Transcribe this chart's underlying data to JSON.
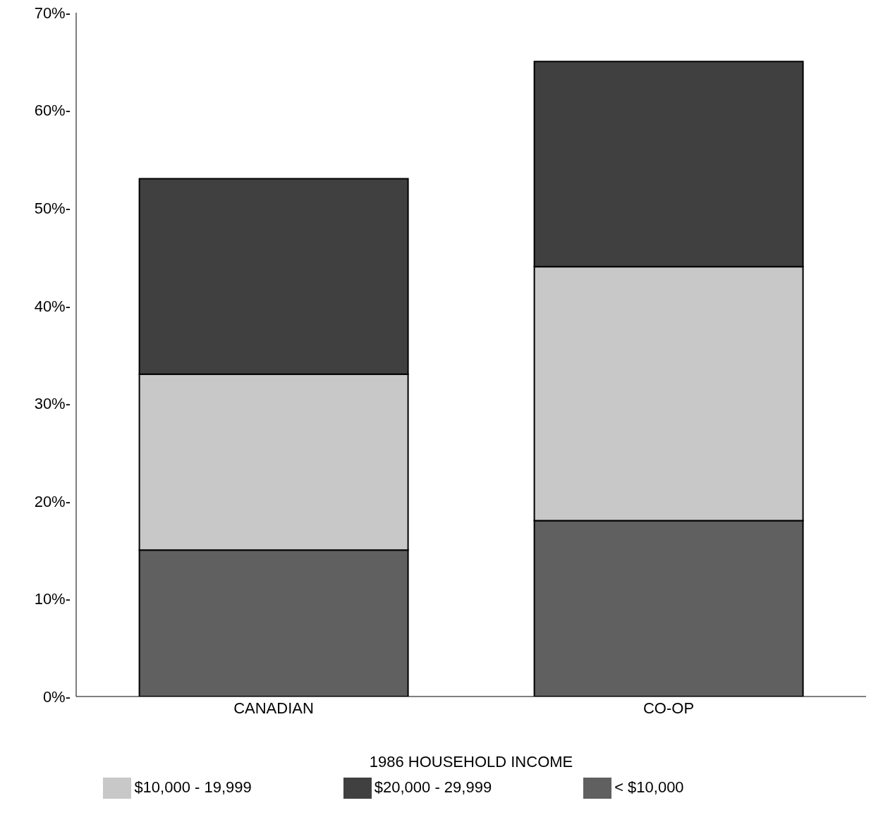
{
  "chart_data": {
    "type": "bar",
    "stacked": true,
    "xlabel": "1986 HOUSEHOLD INCOME",
    "categories": [
      "CANADIAN",
      "CO-OP"
    ],
    "series": [
      {
        "name": "< $10,000",
        "color": "#606060",
        "values": [
          15,
          18
        ]
      },
      {
        "name": "$10,000 - 19,999",
        "color": "#c8c8c8",
        "values": [
          18,
          26
        ]
      },
      {
        "name": "$20,000 - 29,999",
        "color": "#404040",
        "values": [
          20,
          21
        ]
      }
    ],
    "ylim": [
      0,
      70
    ],
    "yticks": [
      {
        "value": 0,
        "label": "0%-"
      },
      {
        "value": 10,
        "label": "10%-"
      },
      {
        "value": 20,
        "label": "20%-"
      },
      {
        "value": 30,
        "label": "30%-"
      },
      {
        "value": 40,
        "label": "40%-"
      },
      {
        "value": 50,
        "label": "50%-"
      },
      {
        "value": 60,
        "label": "60%-"
      },
      {
        "value": 70,
        "label": "70%-"
      }
    ],
    "grid": false,
    "legend": "bottom"
  }
}
